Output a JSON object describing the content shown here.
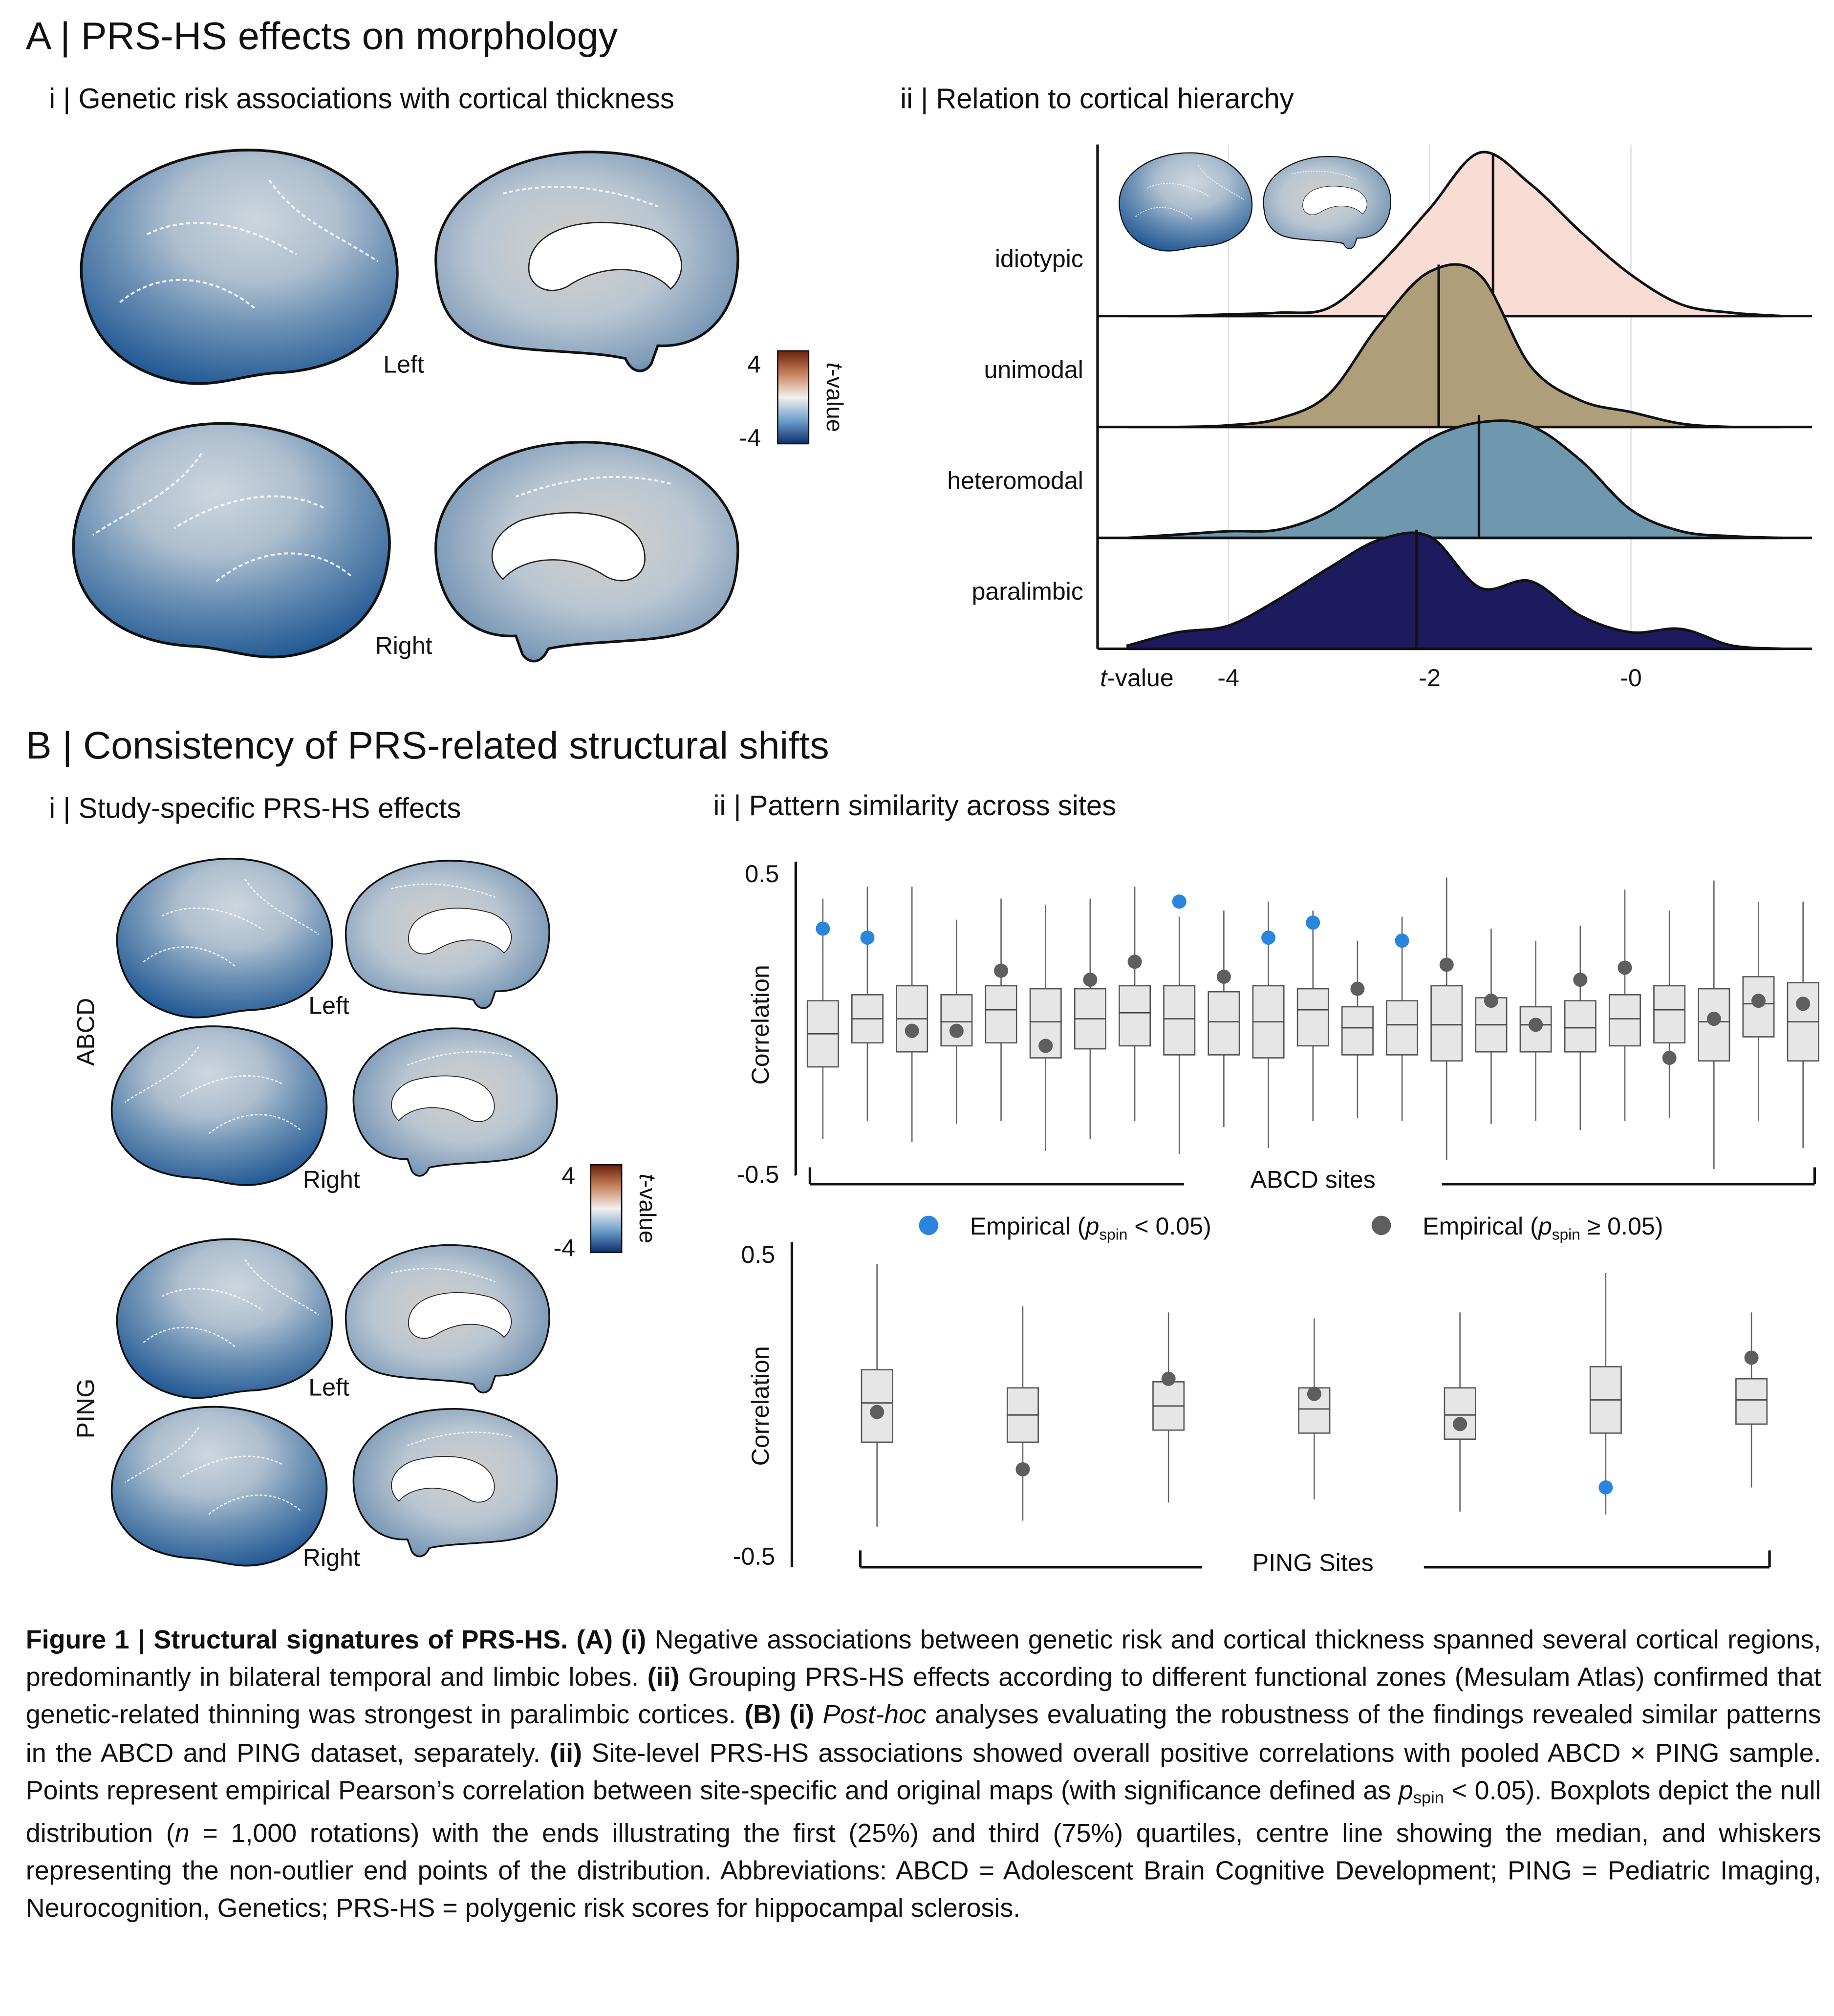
{
  "panel_a": {
    "title": "A | PRS-HS effects on morphology",
    "subtitle": "i | Genetic risk associations with cortical thickness",
    "left_label": "Left",
    "right_label": "Right",
    "colorbar": {
      "vmin": -4,
      "vmax": 4,
      "label_parts": [
        "t",
        "-value"
      ]
    }
  },
  "panel_b": {
    "title": "B | Consistency of PRS-related structural shifts",
    "subtitle": "i | Study-specific PRS-HS effects",
    "subtitle_ii": "ii | Pattern similarity across sites",
    "abcd_label": "ABCD",
    "ping_label": "PING",
    "abcd_left": "Left",
    "abcd_right": "Right",
    "ping_left": "Left",
    "ping_right": "Right",
    "colorbar": {
      "vmin": -4,
      "vmax": 4,
      "label_parts": [
        "t",
        "-value"
      ]
    }
  },
  "chart_data": [
    {
      "type": "ridge",
      "title": "ii | Relation to cortical hierarchy",
      "xlabel_parts": [
        "t",
        "-value"
      ],
      "xlim": [
        -5.3,
        1.8
      ],
      "xticks": [
        -4,
        -2,
        {
          "value": 0,
          "label": "-0"
        }
      ],
      "grid": true,
      "density_x": [
        -5,
        -4.5,
        -4,
        -3.5,
        -3,
        -2.5,
        -2,
        -1.5,
        -1,
        -0.5,
        0,
        0.5,
        1,
        1.5
      ],
      "series": [
        {
          "name": "idiotypic",
          "color": "#f9ddd5",
          "median": -1.37,
          "density": [
            0,
            0,
            0.01,
            0.02,
            0.05,
            0.31,
            0.65,
            0.99,
            0.8,
            0.51,
            0.25,
            0.07,
            0.02,
            0
          ]
        },
        {
          "name": "unimodal",
          "color": "#ae9f7a",
          "median": -1.91,
          "density": [
            0,
            0,
            0.01,
            0.05,
            0.2,
            0.62,
            0.94,
            0.92,
            0.37,
            0.16,
            0.09,
            0.02,
            0,
            0
          ]
        },
        {
          "name": "heteromodal",
          "color": "#6f97ad",
          "median": -1.51,
          "density": [
            0,
            0.02,
            0.04,
            0.05,
            0.16,
            0.38,
            0.6,
            0.7,
            0.68,
            0.47,
            0.17,
            0.04,
            0.01,
            0
          ]
        },
        {
          "name": "paralimbic",
          "color": "#1d1a5e",
          "median": -2.13,
          "density": [
            0.02,
            0.1,
            0.14,
            0.3,
            0.49,
            0.66,
            0.68,
            0.37,
            0.41,
            0.2,
            0.1,
            0.12,
            0.02,
            0
          ]
        }
      ]
    },
    {
      "type": "box",
      "ylabel": "Correlation",
      "xlabel": "ABCD sites",
      "ylim": [
        -0.5,
        0.5
      ],
      "yticks": [
        0.5,
        -0.5
      ],
      "legend": [
        {
          "color": "#2a85dc",
          "label_parts": [
            "Empirical (",
            "p",
            "spin",
            " < 0.05)"
          ]
        },
        {
          "color": "#5e5e5e",
          "label_parts": [
            "Empirical (",
            "p",
            "spin",
            " ≥ 0.05)"
          ]
        }
      ],
      "whisker_low": [
        -0.38,
        -0.32,
        -0.39,
        -0.33,
        -0.32,
        -0.42,
        -0.38,
        -0.32,
        -0.43,
        -0.34,
        -0.41,
        -0.32,
        -0.31,
        -0.32,
        -0.45,
        -0.33,
        -0.32,
        -0.35,
        -0.32,
        -0.31,
        -0.48,
        -0.32,
        -0.41
      ],
      "q1": [
        -0.14,
        -0.06,
        -0.09,
        -0.07,
        -0.06,
        -0.11,
        -0.08,
        -0.07,
        -0.1,
        -0.1,
        -0.11,
        -0.07,
        -0.1,
        -0.1,
        -0.12,
        -0.09,
        -0.09,
        -0.09,
        -0.07,
        -0.06,
        -0.12,
        -0.04,
        -0.12
      ],
      "median": [
        -0.03,
        0.02,
        0.02,
        0.01,
        0.05,
        0.01,
        0.02,
        0.04,
        0.02,
        0.01,
        0.01,
        0.05,
        -0.01,
        0,
        0,
        0,
        0,
        -0.01,
        0.02,
        0.05,
        0.01,
        0.07,
        0.01
      ],
      "q3": [
        0.08,
        0.1,
        0.13,
        0.1,
        0.13,
        0.12,
        0.12,
        0.13,
        0.13,
        0.11,
        0.13,
        0.12,
        0.06,
        0.08,
        0.13,
        0.09,
        0.06,
        0.08,
        0.1,
        0.13,
        0.12,
        0.16,
        0.14
      ],
      "whisker_high": [
        0.42,
        0.46,
        0.46,
        0.35,
        0.42,
        0.4,
        0.42,
        0.46,
        0.36,
        0.38,
        0.41,
        0.38,
        0.28,
        0.36,
        0.49,
        0.32,
        0.28,
        0.33,
        0.45,
        0.38,
        0.48,
        0.41,
        0.41
      ],
      "empirical": [
        0.32,
        0.29,
        -0.02,
        -0.02,
        0.18,
        -0.07,
        0.15,
        0.21,
        0.41,
        0.16,
        0.29,
        0.34,
        0.12,
        0.28,
        0.2,
        0.08,
        0,
        0.15,
        0.19,
        -0.11,
        0.02,
        0.08,
        0.07
      ],
      "significant": [
        true,
        true,
        false,
        false,
        false,
        false,
        false,
        false,
        true,
        false,
        true,
        true,
        false,
        true,
        false,
        false,
        false,
        false,
        false,
        false,
        false,
        false,
        false
      ]
    },
    {
      "type": "box",
      "ylabel": "Correlation",
      "xlabel": "PING Sites",
      "ylim": [
        -0.5,
        0.5
      ],
      "yticks": [
        0.5,
        -0.5
      ],
      "whisker_low": [
        -0.4,
        -0.38,
        -0.32,
        -0.31,
        -0.35,
        -0.36,
        -0.27
      ],
      "q1": [
        -0.12,
        -0.12,
        -0.08,
        -0.09,
        -0.11,
        -0.09,
        -0.06
      ],
      "median": [
        0.01,
        -0.03,
        0,
        -0.01,
        -0.03,
        0.02,
        0.02
      ],
      "q3": [
        0.12,
        0.06,
        0.08,
        0.06,
        0.06,
        0.13,
        0.09
      ],
      "whisker_high": [
        0.47,
        0.33,
        0.31,
        0.29,
        0.31,
        0.44,
        0.31
      ],
      "empirical": [
        -0.02,
        -0.21,
        0.09,
        0.04,
        -0.06,
        -0.27,
        0.16
      ],
      "significant": [
        false,
        false,
        false,
        false,
        false,
        true,
        false
      ]
    }
  ],
  "caption": [
    {
      "text": "Figure 1 | Structural signatures of PRS-HS. (A) (i)",
      "style": "bold"
    },
    {
      "text": " Negative associations between genetic risk and cortical thickness spanned several cortical regions, predominantly in bilateral temporal and limbic lobes. ",
      "style": "normal"
    },
    {
      "text": "(ii)",
      "style": "bold"
    },
    {
      "text": " Grouping PRS-HS effects according to different functional zones (Mesulam Atlas) confirmed that genetic-related thinning was strongest in paralimbic cortices. ",
      "style": "normal"
    },
    {
      "text": "(B) (i) ",
      "style": "bold"
    },
    {
      "text": "Post-hoc",
      "style": "italic"
    },
    {
      "text": " analyses evaluating the robustness of the findings revealed similar patterns in the ABCD and PING dataset, separately. ",
      "style": "normal"
    },
    {
      "text": "(ii)",
      "style": "bold"
    },
    {
      "text": " Site-level PRS-HS associations showed overall positive correlations with pooled ABCD × PING sample. Points represent empirical Pearson’s correlation between site-specific and original maps (with significance defined as ",
      "style": "normal"
    },
    {
      "text": "p",
      "style": "italic"
    },
    {
      "text": "spin",
      "style": "sub"
    },
    {
      "text": " < 0.05). Boxplots depict the null distribution (",
      "style": "normal"
    },
    {
      "text": "n",
      "style": "italic"
    },
    {
      "text": " = 1,000 rotations) with the ends illustrating the first (25%) and third (75%) quartiles, centre line showing the median, and whiskers representing the non-outlier end points of the distribution. Abbreviations: ABCD = Adolescent Brain Cognitive Development; PING = Pediatric Imaging, Neurocognition, Genetics; PRS-HS = polygenic risk scores for hippocampal sclerosis.",
      "style": "normal"
    }
  ]
}
